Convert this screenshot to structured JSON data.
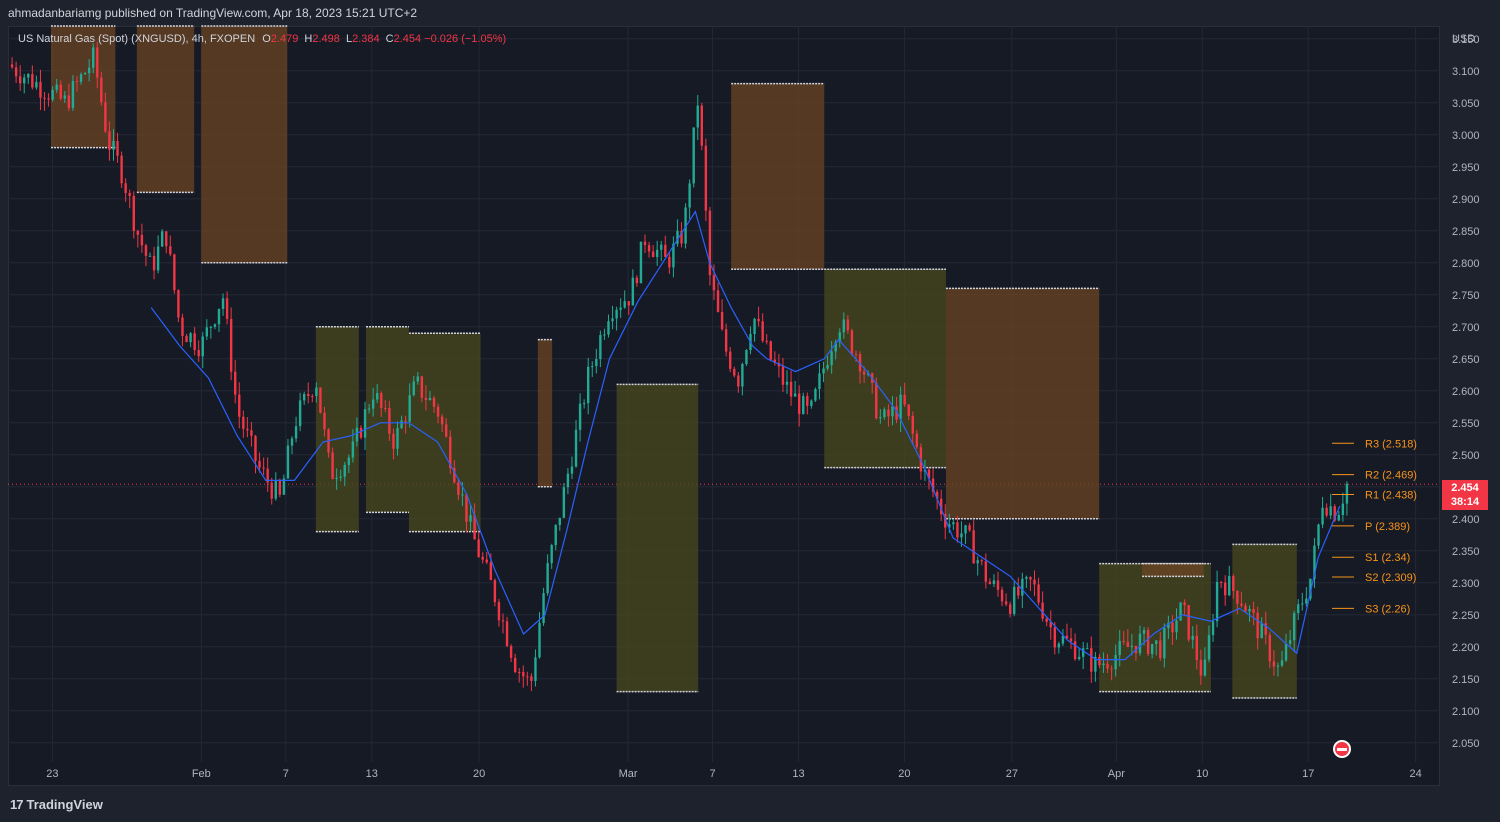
{
  "header": {
    "publisher": "ahmadanbariamg published on TradingView.com, Apr 18, 2023 15:21 UTC+2",
    "symbol": "US Natural Gas (Spot) (XNGUSD), 4h, FXOPEN",
    "o_label": "O",
    "o_value": "2.479",
    "h_label": "H",
    "h_value": "2.498",
    "l_label": "L",
    "l_value": "2.384",
    "c_label": "C",
    "c_value": "2.454 −0.026 (−1.05%)"
  },
  "branding": {
    "logo_mark": "17",
    "logo_text": "TradingView"
  },
  "price_tag": {
    "price": "2.454",
    "countdown": "38:14"
  },
  "colors": {
    "up": "#22ab94",
    "down": "#f23645",
    "pivot_label": "#f7931a",
    "ma": "#2962ff",
    "fill_down": "#6b4423",
    "fill_up": "#4a4a1c"
  },
  "chart_data": {
    "type": "candlestick",
    "currency_label": "USD",
    "ylim": [
      2.02,
      3.17
    ],
    "y_ticks": [
      "3.150",
      "3.100",
      "3.050",
      "3.000",
      "2.950",
      "2.900",
      "2.850",
      "2.800",
      "2.750",
      "2.700",
      "2.650",
      "2.600",
      "2.550",
      "2.500",
      "2.450",
      "2.400",
      "2.350",
      "2.300",
      "2.250",
      "2.200",
      "2.150",
      "2.100",
      "2.050"
    ],
    "x_ticks": [
      {
        "label": "23",
        "pos": 0.031
      },
      {
        "label": "Feb",
        "pos": 0.135
      },
      {
        "label": "7",
        "pos": 0.194
      },
      {
        "label": "13",
        "pos": 0.254
      },
      {
        "label": "20",
        "pos": 0.329
      },
      {
        "label": "Mar",
        "pos": 0.433
      },
      {
        "label": "7",
        "pos": 0.492
      },
      {
        "label": "13",
        "pos": 0.552
      },
      {
        "label": "20",
        "pos": 0.626
      },
      {
        "label": "27",
        "pos": 0.701
      },
      {
        "label": "Apr",
        "pos": 0.774
      },
      {
        "label": "10",
        "pos": 0.834
      },
      {
        "label": "17",
        "pos": 0.908
      },
      {
        "label": "24",
        "pos": 0.983
      }
    ],
    "current_price": 2.454,
    "close_path": [
      [
        0,
        3.11
      ],
      [
        0.02,
        3.08
      ],
      [
        0.04,
        3.05
      ],
      [
        0.06,
        3.12
      ],
      [
        0.07,
        2.99
      ],
      [
        0.08,
        2.94
      ],
      [
        0.09,
        2.85
      ],
      [
        0.1,
        2.79
      ],
      [
        0.11,
        2.85
      ],
      [
        0.12,
        2.7
      ],
      [
        0.135,
        2.67
      ],
      [
        0.15,
        2.75
      ],
      [
        0.16,
        2.57
      ],
      [
        0.175,
        2.48
      ],
      [
        0.19,
        2.43
      ],
      [
        0.2,
        2.55
      ],
      [
        0.215,
        2.62
      ],
      [
        0.225,
        2.47
      ],
      [
        0.24,
        2.5
      ],
      [
        0.255,
        2.6
      ],
      [
        0.27,
        2.52
      ],
      [
        0.285,
        2.61
      ],
      [
        0.3,
        2.57
      ],
      [
        0.31,
        2.49
      ],
      [
        0.325,
        2.37
      ],
      [
        0.34,
        2.28
      ],
      [
        0.355,
        2.17
      ],
      [
        0.365,
        2.14
      ],
      [
        0.375,
        2.3
      ],
      [
        0.39,
        2.46
      ],
      [
        0.405,
        2.62
      ],
      [
        0.42,
        2.73
      ],
      [
        0.435,
        2.75
      ],
      [
        0.445,
        2.84
      ],
      [
        0.46,
        2.8
      ],
      [
        0.472,
        2.85
      ],
      [
        0.482,
        3.06
      ],
      [
        0.49,
        2.78
      ],
      [
        0.5,
        2.67
      ],
      [
        0.51,
        2.62
      ],
      [
        0.52,
        2.72
      ],
      [
        0.53,
        2.66
      ],
      [
        0.545,
        2.6
      ],
      [
        0.56,
        2.56
      ],
      [
        0.57,
        2.64
      ],
      [
        0.58,
        2.71
      ],
      [
        0.595,
        2.65
      ],
      [
        0.61,
        2.55
      ],
      [
        0.625,
        2.58
      ],
      [
        0.64,
        2.47
      ],
      [
        0.655,
        2.4
      ],
      [
        0.67,
        2.37
      ],
      [
        0.685,
        2.3
      ],
      [
        0.7,
        2.27
      ],
      [
        0.715,
        2.3
      ],
      [
        0.73,
        2.22
      ],
      [
        0.745,
        2.2
      ],
      [
        0.76,
        2.17
      ],
      [
        0.775,
        2.19
      ],
      [
        0.79,
        2.21
      ],
      [
        0.805,
        2.2
      ],
      [
        0.82,
        2.26
      ],
      [
        0.835,
        2.15
      ],
      [
        0.845,
        2.31
      ],
      [
        0.86,
        2.28
      ],
      [
        0.875,
        2.22
      ],
      [
        0.888,
        2.16
      ],
      [
        0.9,
        2.25
      ],
      [
        0.91,
        2.31
      ],
      [
        0.918,
        2.43
      ],
      [
        0.928,
        2.41
      ],
      [
        0.935,
        2.454
      ]
    ],
    "ma_path": [
      [
        0.1,
        2.73
      ],
      [
        0.12,
        2.67
      ],
      [
        0.14,
        2.62
      ],
      [
        0.16,
        2.53
      ],
      [
        0.18,
        2.46
      ],
      [
        0.2,
        2.46
      ],
      [
        0.22,
        2.52
      ],
      [
        0.24,
        2.53
      ],
      [
        0.26,
        2.55
      ],
      [
        0.28,
        2.55
      ],
      [
        0.3,
        2.52
      ],
      [
        0.32,
        2.44
      ],
      [
        0.34,
        2.32
      ],
      [
        0.36,
        2.22
      ],
      [
        0.375,
        2.25
      ],
      [
        0.39,
        2.38
      ],
      [
        0.405,
        2.52
      ],
      [
        0.42,
        2.65
      ],
      [
        0.44,
        2.74
      ],
      [
        0.46,
        2.81
      ],
      [
        0.48,
        2.88
      ],
      [
        0.49,
        2.8
      ],
      [
        0.505,
        2.73
      ],
      [
        0.52,
        2.67
      ],
      [
        0.53,
        2.65
      ],
      [
        0.55,
        2.63
      ],
      [
        0.57,
        2.65
      ],
      [
        0.58,
        2.68
      ],
      [
        0.6,
        2.63
      ],
      [
        0.62,
        2.57
      ],
      [
        0.64,
        2.48
      ],
      [
        0.66,
        2.37
      ],
      [
        0.68,
        2.34
      ],
      [
        0.7,
        2.31
      ],
      [
        0.72,
        2.26
      ],
      [
        0.74,
        2.21
      ],
      [
        0.76,
        2.18
      ],
      [
        0.78,
        2.18
      ],
      [
        0.8,
        2.22
      ],
      [
        0.82,
        2.25
      ],
      [
        0.84,
        2.24
      ],
      [
        0.86,
        2.26
      ],
      [
        0.88,
        2.23
      ],
      [
        0.9,
        2.19
      ],
      [
        0.915,
        2.34
      ],
      [
        0.93,
        2.42
      ]
    ],
    "pivot_boxes": [
      {
        "x0": 0.03,
        "x1": 0.075,
        "hi": 3.17,
        "lo": 2.98,
        "dir": "down"
      },
      {
        "x0": 0.09,
        "x1": 0.13,
        "hi": 3.17,
        "lo": 2.91,
        "dir": "down"
      },
      {
        "x0": 0.135,
        "x1": 0.195,
        "hi": 3.17,
        "lo": 2.8,
        "dir": "down"
      },
      {
        "x0": 0.215,
        "x1": 0.245,
        "hi": 2.7,
        "lo": 2.38,
        "dir": "up"
      },
      {
        "x0": 0.25,
        "x1": 0.28,
        "hi": 2.7,
        "lo": 2.41,
        "dir": "up"
      },
      {
        "x0": 0.28,
        "x1": 0.33,
        "hi": 2.69,
        "lo": 2.38,
        "dir": "up"
      },
      {
        "x0": 0.37,
        "x1": 0.38,
        "hi": 2.68,
        "lo": 2.45,
        "dir": "down"
      },
      {
        "x0": 0.425,
        "x1": 0.482,
        "hi": 2.61,
        "lo": 2.13,
        "dir": "up"
      },
      {
        "x0": 0.505,
        "x1": 0.57,
        "hi": 3.08,
        "lo": 2.79,
        "dir": "down"
      },
      {
        "x0": 0.57,
        "x1": 0.655,
        "hi": 2.79,
        "lo": 2.48,
        "dir": "up"
      },
      {
        "x0": 0.655,
        "x1": 0.762,
        "hi": 2.76,
        "lo": 2.4,
        "dir": "down"
      },
      {
        "x0": 0.762,
        "x1": 0.84,
        "hi": 2.33,
        "lo": 2.13,
        "dir": "up"
      },
      {
        "x0": 0.792,
        "x1": 0.835,
        "hi": 2.33,
        "lo": 2.31,
        "dir": "down"
      },
      {
        "x0": 0.855,
        "x1": 0.9,
        "hi": 2.36,
        "lo": 2.12,
        "dir": "up"
      }
    ],
    "pivot_levels": [
      {
        "label": "R3 (2.518)",
        "value": 2.518
      },
      {
        "label": "R2 (2.469)",
        "value": 2.469
      },
      {
        "label": "R1 (2.438)",
        "value": 2.438
      },
      {
        "label": "P (2.389)",
        "value": 2.389
      },
      {
        "label": "S1 (2.34)",
        "value": 2.34
      },
      {
        "label": "S2 (2.309)",
        "value": 2.309
      },
      {
        "label": "S3 (2.26)",
        "value": 2.26
      }
    ]
  }
}
